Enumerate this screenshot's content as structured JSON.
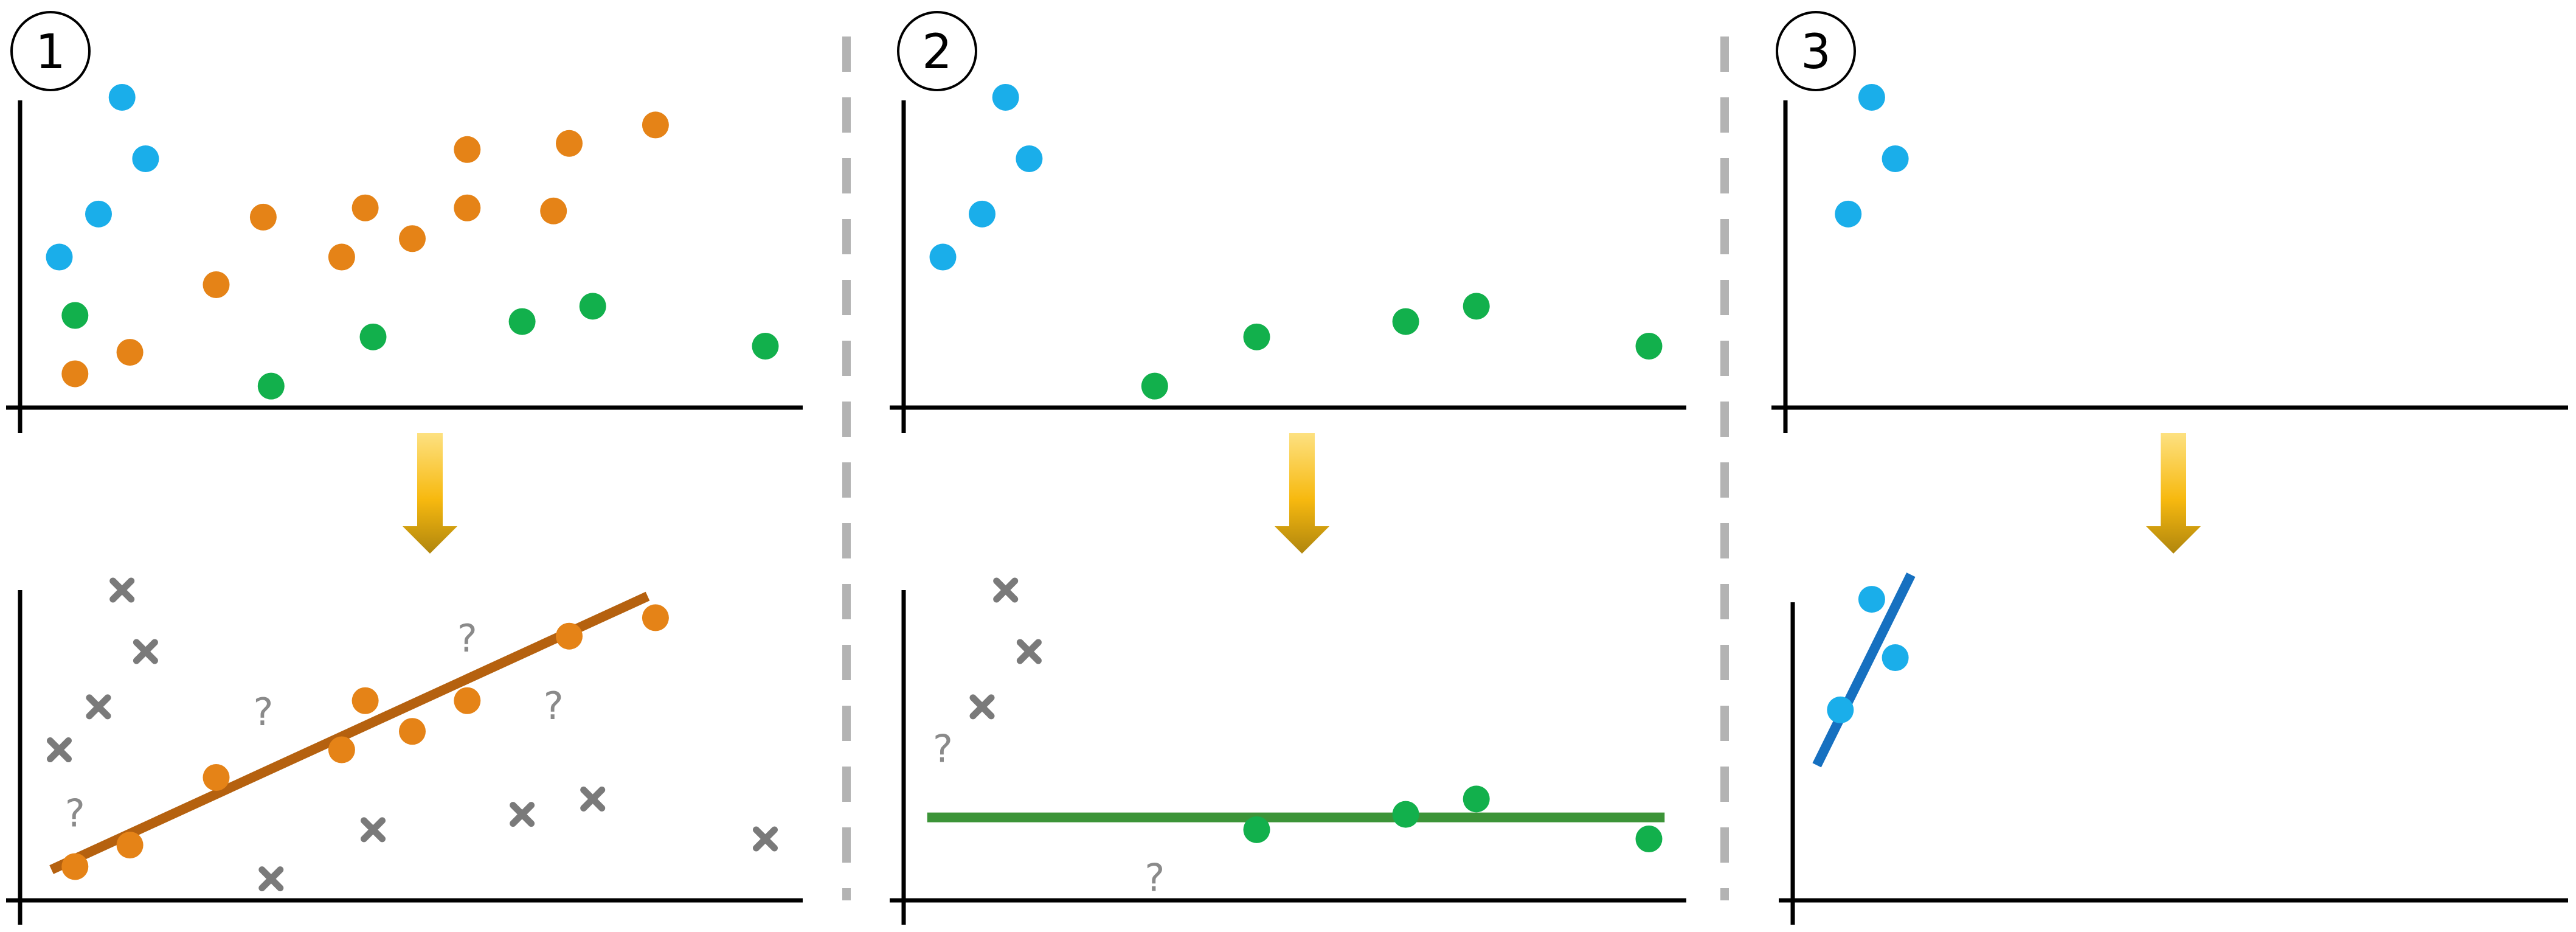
{
  "colors": {
    "blue": "#1aaeea",
    "orange": "#e58317",
    "green": "#12b04c",
    "gray": "#7a7a7a",
    "arrow_top": "#fde181",
    "arrow_bottom": "#b0860e",
    "fit_orange": "#b5610f",
    "fit_green": "#3c9438",
    "fit_blue": "#1670c0",
    "divider": "#b3b3b3"
  },
  "icons": {
    "arrow": "down-arrow-icon",
    "excluded_marker": "cross-icon",
    "unknown_marker": "question-mark"
  },
  "panels": [
    {
      "label": "1",
      "top_points": {
        "blue": [
          [
            0.05,
            0.49
          ],
          [
            0.1,
            0.63
          ],
          [
            0.13,
            1.01
          ],
          [
            0.16,
            0.81
          ]
        ],
        "orange": [
          [
            0.07,
            0.11
          ],
          [
            0.14,
            0.18
          ],
          [
            0.25,
            0.4
          ],
          [
            0.31,
            0.62
          ],
          [
            0.41,
            0.49
          ],
          [
            0.44,
            0.65
          ],
          [
            0.5,
            0.55
          ],
          [
            0.57,
            0.65
          ],
          [
            0.57,
            0.84
          ],
          [
            0.68,
            0.64
          ],
          [
            0.7,
            0.86
          ],
          [
            0.81,
            0.92
          ]
        ],
        "green": [
          [
            0.07,
            0.3
          ],
          [
            0.32,
            0.07
          ],
          [
            0.45,
            0.23
          ],
          [
            0.64,
            0.28
          ],
          [
            0.73,
            0.33
          ],
          [
            0.95,
            0.2
          ]
        ]
      },
      "bottom_points": {
        "orange": [
          [
            0.07,
            0.11
          ],
          [
            0.14,
            0.18
          ],
          [
            0.25,
            0.4
          ],
          [
            0.41,
            0.49
          ],
          [
            0.44,
            0.65
          ],
          [
            0.5,
            0.55
          ],
          [
            0.57,
            0.65
          ],
          [
            0.7,
            0.86
          ],
          [
            0.81,
            0.92
          ]
        ],
        "crosses": [
          [
            0.05,
            0.49
          ],
          [
            0.1,
            0.63
          ],
          [
            0.13,
            1.01
          ],
          [
            0.16,
            0.81
          ],
          [
            0.32,
            0.07
          ],
          [
            0.45,
            0.23
          ],
          [
            0.64,
            0.28
          ],
          [
            0.73,
            0.33
          ],
          [
            0.95,
            0.2
          ]
        ],
        "questions": [
          [
            0.07,
            0.28
          ],
          [
            0.31,
            0.61
          ],
          [
            0.57,
            0.85
          ],
          [
            0.68,
            0.63
          ]
        ],
        "fit": {
          "color": "fit_orange",
          "from": [
            0.04,
            0.1
          ],
          "to": [
            0.8,
            0.99
          ]
        }
      }
    },
    {
      "label": "2",
      "top_points": {
        "blue": [
          [
            0.05,
            0.49
          ],
          [
            0.1,
            0.63
          ],
          [
            0.13,
            1.01
          ],
          [
            0.16,
            0.81
          ]
        ],
        "green": [
          [
            0.32,
            0.07
          ],
          [
            0.45,
            0.23
          ],
          [
            0.64,
            0.28
          ],
          [
            0.73,
            0.33
          ],
          [
            0.95,
            0.2
          ]
        ]
      },
      "bottom_points": {
        "green": [
          [
            0.45,
            0.23
          ],
          [
            0.64,
            0.28
          ],
          [
            0.73,
            0.33
          ],
          [
            0.95,
            0.2
          ]
        ],
        "crosses": [
          [
            0.1,
            0.63
          ],
          [
            0.13,
            1.01
          ],
          [
            0.16,
            0.81
          ]
        ],
        "questions": [
          [
            0.05,
            0.49
          ],
          [
            0.32,
            0.07
          ]
        ],
        "fit": {
          "color": "fit_green",
          "from": [
            0.03,
            0.27
          ],
          "to": [
            0.97,
            0.27
          ]
        }
      }
    },
    {
      "label": "3",
      "top_points": {
        "blue": [
          [
            0.08,
            0.63
          ],
          [
            0.11,
            1.01
          ],
          [
            0.14,
            0.81
          ]
        ]
      },
      "bottom_points": {
        "blue": [
          [
            0.07,
            0.62
          ],
          [
            0.11,
            0.98
          ],
          [
            0.14,
            0.79
          ]
        ],
        "fit": {
          "color": "fit_blue",
          "from": [
            0.04,
            0.44
          ],
          "to": [
            0.16,
            1.06
          ]
        }
      }
    }
  ]
}
